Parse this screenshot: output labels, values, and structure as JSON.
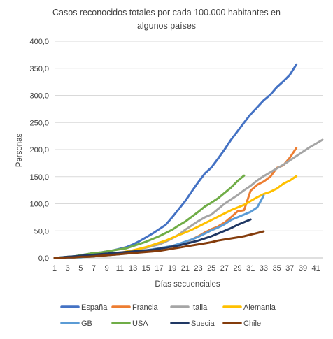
{
  "chart_data": {
    "type": "line",
    "title": "Casos  reconocidos  totales por cada 100.000 habitantes en algunos países",
    "title_lines": [
      "Casos  reconocidos  totales por cada 100.000 habitantes en",
      "algunos países"
    ],
    "xlabel": "Días secuenciales",
    "ylabel": "Personas",
    "x_ticks": [
      "1",
      "3",
      "5",
      "7",
      "9",
      "11",
      "13",
      "15",
      "17",
      "19",
      "21",
      "23",
      "25",
      "27",
      "29",
      "31",
      "33",
      "35",
      "37",
      "39",
      "41"
    ],
    "y_ticks": [
      "0,0",
      "50,0",
      "100,0",
      "150,0",
      "200,0",
      "250,0",
      "300,0",
      "350,0",
      "400,0"
    ],
    "xlim": [
      1,
      42
    ],
    "ylim": [
      0,
      400
    ],
    "grid": "horizontal",
    "legend_position": "bottom",
    "series": [
      {
        "name": "España",
        "color": "#4472C4",
        "x": [
          1,
          2,
          3,
          4,
          5,
          6,
          7,
          8,
          9,
          10,
          11,
          12,
          13,
          14,
          15,
          16,
          17,
          18,
          19,
          20,
          21,
          22,
          23,
          24,
          25,
          26,
          27,
          28,
          29,
          30,
          31,
          32,
          33,
          34,
          35,
          36,
          37,
          38
        ],
        "y": [
          0,
          1,
          2,
          3,
          5,
          7,
          9,
          10,
          12,
          14,
          17,
          20,
          25,
          31,
          38,
          45,
          53,
          61,
          75,
          90,
          105,
          123,
          140,
          156,
          167,
          183,
          200,
          218,
          234,
          250,
          265,
          278,
          291,
          301,
          315,
          326,
          338,
          357
        ]
      },
      {
        "name": "Francia",
        "color": "#ED7D31",
        "x": [
          1,
          2,
          3,
          4,
          5,
          6,
          7,
          8,
          9,
          10,
          11,
          12,
          13,
          14,
          15,
          16,
          17,
          18,
          19,
          20,
          21,
          22,
          23,
          24,
          25,
          26,
          27,
          28,
          29,
          30,
          31,
          32,
          33,
          34,
          35,
          36,
          37,
          38
        ],
        "y": [
          0,
          0,
          1,
          1,
          2,
          2,
          3,
          4,
          5,
          6,
          7,
          9,
          10,
          12,
          13,
          15,
          17,
          19,
          22,
          25,
          29,
          34,
          40,
          47,
          53,
          58,
          65,
          75,
          86,
          88,
          124,
          135,
          141,
          150,
          166,
          171,
          185,
          203
        ]
      },
      {
        "name": "Italia",
        "color": "#A5A5A5",
        "x": [
          1,
          2,
          3,
          4,
          5,
          6,
          7,
          8,
          9,
          10,
          11,
          12,
          13,
          14,
          15,
          16,
          17,
          18,
          19,
          20,
          21,
          22,
          23,
          24,
          25,
          26,
          27,
          28,
          29,
          30,
          31,
          32,
          33,
          34,
          35,
          36,
          37,
          38,
          39,
          40,
          41,
          42
        ],
        "y": [
          0,
          0,
          1,
          1,
          2,
          3,
          4,
          5,
          6,
          7,
          9,
          11,
          13,
          16,
          19,
          22,
          25,
          30,
          36,
          43,
          52,
          60,
          68,
          75,
          80,
          90,
          100,
          108,
          116,
          125,
          133,
          143,
          151,
          158,
          165,
          172,
          180,
          188,
          196,
          204,
          211,
          218
        ]
      },
      {
        "name": "Alemania",
        "color": "#FFC000",
        "x": [
          1,
          2,
          3,
          4,
          5,
          6,
          7,
          8,
          9,
          10,
          11,
          12,
          13,
          14,
          15,
          16,
          17,
          18,
          19,
          20,
          21,
          22,
          23,
          24,
          25,
          26,
          27,
          28,
          29,
          30,
          31,
          32,
          33,
          34,
          35,
          36,
          37,
          38
        ],
        "y": [
          0,
          0,
          0,
          1,
          1,
          2,
          3,
          4,
          5,
          7,
          9,
          12,
          14,
          17,
          20,
          24,
          28,
          32,
          37,
          42,
          47,
          52,
          58,
          64,
          70,
          76,
          82,
          88,
          93,
          98,
          105,
          112,
          118,
          122,
          128,
          137,
          143,
          151
        ]
      },
      {
        "name": "GB",
        "color": "#5B9BD5",
        "x": [
          1,
          2,
          3,
          4,
          5,
          6,
          7,
          8,
          9,
          10,
          11,
          12,
          13,
          14,
          15,
          16,
          17,
          18,
          19,
          20,
          21,
          22,
          23,
          24,
          25,
          26,
          27,
          28,
          29,
          30,
          31,
          32,
          33
        ],
        "y": [
          0,
          0,
          0,
          1,
          1,
          2,
          3,
          4,
          5,
          6,
          7,
          8,
          10,
          12,
          14,
          16,
          18,
          20,
          22,
          26,
          30,
          34,
          39,
          45,
          51,
          56,
          62,
          70,
          75,
          80,
          85,
          93,
          115
        ]
      },
      {
        "name": "USA",
        "color": "#70AD47",
        "x": [
          1,
          2,
          3,
          4,
          5,
          6,
          7,
          8,
          9,
          10,
          11,
          12,
          13,
          14,
          15,
          16,
          17,
          18,
          19,
          20,
          21,
          22,
          23,
          24,
          25,
          26,
          27,
          28,
          29,
          30
        ],
        "y": [
          0,
          1,
          2,
          3,
          5,
          7,
          9,
          10,
          12,
          14,
          16,
          18,
          22,
          26,
          30,
          35,
          40,
          46,
          52,
          60,
          67,
          76,
          85,
          95,
          102,
          110,
          120,
          130,
          142,
          152
        ]
      },
      {
        "name": "Suecia",
        "color": "#203864",
        "x": [
          1,
          2,
          3,
          4,
          5,
          6,
          7,
          8,
          9,
          10,
          11,
          12,
          13,
          14,
          15,
          16,
          17,
          18,
          19,
          20,
          21,
          22,
          23,
          24,
          25,
          26,
          27,
          28,
          29,
          30,
          31
        ],
        "y": [
          0,
          1,
          2,
          3,
          4,
          5,
          6,
          7,
          8,
          9,
          10,
          11,
          12,
          13,
          14,
          15,
          17,
          19,
          21,
          23,
          26,
          29,
          32,
          36,
          40,
          45,
          50,
          55,
          61,
          66,
          71
        ]
      },
      {
        "name": "Chile",
        "color": "#843C0C",
        "x": [
          1,
          2,
          3,
          4,
          5,
          6,
          7,
          8,
          9,
          10,
          11,
          12,
          13,
          14,
          15,
          16,
          17,
          18,
          19,
          20,
          21,
          22,
          23,
          24,
          25,
          26,
          27,
          28,
          29,
          30,
          31,
          32,
          33
        ],
        "y": [
          0,
          0,
          1,
          1,
          2,
          2,
          3,
          4,
          5,
          6,
          7,
          8,
          9,
          10,
          11,
          12,
          13,
          15,
          17,
          19,
          21,
          23,
          25,
          27,
          29,
          32,
          34,
          36,
          38,
          40,
          43,
          46,
          49
        ]
      }
    ]
  }
}
